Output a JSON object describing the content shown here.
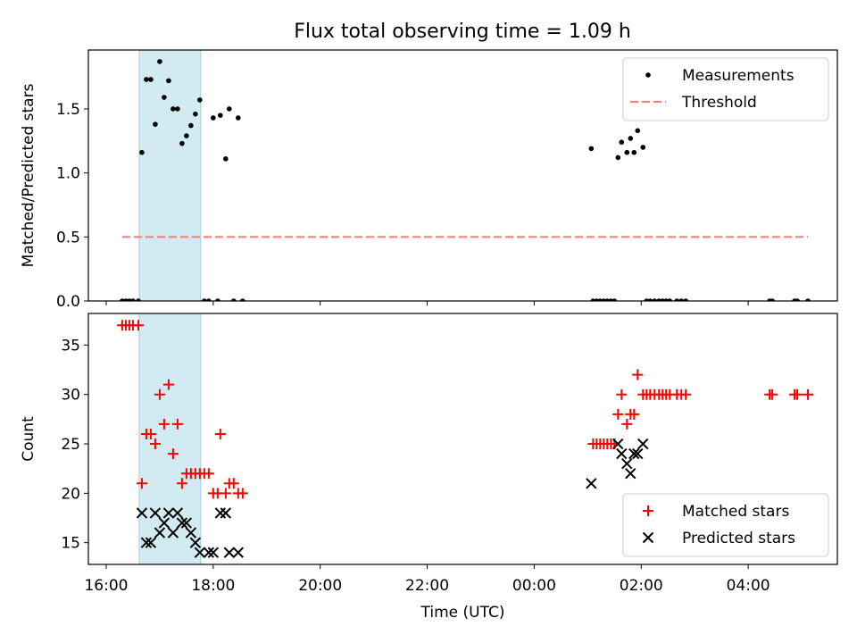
{
  "figure": {
    "title": "Flux total observing time = 1.09 h"
  },
  "chart_data": [
    {
      "type": "scatter",
      "panel": "top",
      "title": "Flux total observing time = 1.09 h",
      "xlabel": "",
      "ylabel": "Matched/Predicted stars",
      "x_tick_labels": [],
      "xlim": [
        "15:40",
        "05:40"
      ],
      "ylim": [
        0,
        1.96
      ],
      "y_ticks": [
        0.0,
        0.5,
        1.0,
        1.5
      ],
      "y_tick_labels": [
        "0.0",
        "0.5",
        "1.0",
        "1.5"
      ],
      "shaded_span": {
        "start": "16:37",
        "end": "17:46",
        "color": "#add8e6"
      },
      "legend": {
        "placement": "top-right",
        "entries": [
          "Measurements",
          "Threshold"
        ]
      },
      "series": [
        {
          "name": "Measurements",
          "marker": "dot",
          "color": "#000000",
          "points": [
            {
              "x": "16:18",
              "y": 0
            },
            {
              "x": "16:22",
              "y": 0
            },
            {
              "x": "16:26",
              "y": 0
            },
            {
              "x": "16:30",
              "y": 0
            },
            {
              "x": "16:36",
              "y": 0
            },
            {
              "x": "16:40",
              "y": 1.16
            },
            {
              "x": "16:45",
              "y": 1.73
            },
            {
              "x": "16:50",
              "y": 1.73
            },
            {
              "x": "16:55",
              "y": 1.38
            },
            {
              "x": "17:00",
              "y": 1.87
            },
            {
              "x": "17:05",
              "y": 1.59
            },
            {
              "x": "17:10",
              "y": 1.72
            },
            {
              "x": "17:15",
              "y": 1.5
            },
            {
              "x": "17:20",
              "y": 1.5
            },
            {
              "x": "17:25",
              "y": 1.23
            },
            {
              "x": "17:30",
              "y": 1.29
            },
            {
              "x": "17:35",
              "y": 1.37
            },
            {
              "x": "17:40",
              "y": 1.46
            },
            {
              "x": "17:45",
              "y": 1.57
            },
            {
              "x": "17:50",
              "y": 0
            },
            {
              "x": "17:55",
              "y": 0
            },
            {
              "x": "18:00",
              "y": 1.43
            },
            {
              "x": "18:05",
              "y": 0
            },
            {
              "x": "18:08",
              "y": 1.45
            },
            {
              "x": "18:14",
              "y": 1.11
            },
            {
              "x": "18:18",
              "y": 1.5
            },
            {
              "x": "18:23",
              "y": 0
            },
            {
              "x": "18:28",
              "y": 1.43
            },
            {
              "x": "18:33",
              "y": 0
            },
            {
              "x": "01:04",
              "y": 1.19
            },
            {
              "x": "01:06",
              "y": 0
            },
            {
              "x": "01:10",
              "y": 0
            },
            {
              "x": "01:14",
              "y": 0
            },
            {
              "x": "01:18",
              "y": 0
            },
            {
              "x": "01:22",
              "y": 0
            },
            {
              "x": "01:26",
              "y": 0
            },
            {
              "x": "01:30",
              "y": 0
            },
            {
              "x": "01:34",
              "y": 1.12
            },
            {
              "x": "01:38",
              "y": 1.24
            },
            {
              "x": "01:44",
              "y": 1.16
            },
            {
              "x": "01:48",
              "y": 1.27
            },
            {
              "x": "01:52",
              "y": 1.16
            },
            {
              "x": "01:56",
              "y": 1.33
            },
            {
              "x": "02:02",
              "y": 1.2
            },
            {
              "x": "02:06",
              "y": 0
            },
            {
              "x": "02:10",
              "y": 0
            },
            {
              "x": "02:15",
              "y": 0
            },
            {
              "x": "02:20",
              "y": 0
            },
            {
              "x": "02:24",
              "y": 0
            },
            {
              "x": "02:28",
              "y": 0
            },
            {
              "x": "02:32",
              "y": 0
            },
            {
              "x": "02:40",
              "y": 0
            },
            {
              "x": "02:45",
              "y": 0
            },
            {
              "x": "02:50",
              "y": 0
            },
            {
              "x": "04:24",
              "y": 0
            },
            {
              "x": "04:27",
              "y": 0
            },
            {
              "x": "04:52",
              "y": 0
            },
            {
              "x": "04:55",
              "y": 0
            },
            {
              "x": "05:07",
              "y": 0
            }
          ]
        },
        {
          "name": "Threshold",
          "marker": "dashed-line",
          "color": "#ff7f7f",
          "points": [
            {
              "x": "16:18",
              "y": 0.5
            },
            {
              "x": "05:07",
              "y": 0.5
            }
          ]
        }
      ]
    },
    {
      "type": "scatter",
      "panel": "bottom",
      "xlabel": "Time (UTC)",
      "ylabel": "Count",
      "xlim": [
        "15:40",
        "05:40"
      ],
      "x_ticks": [
        "16:00",
        "18:00",
        "20:00",
        "22:00",
        "00:00",
        "02:00",
        "04:00"
      ],
      "x_tick_labels": [
        "16:00",
        "18:00",
        "20:00",
        "22:00",
        "00:00",
        "02:00",
        "04:00"
      ],
      "ylim": [
        12.8,
        38.2
      ],
      "y_ticks": [
        15,
        20,
        25,
        30,
        35
      ],
      "y_tick_labels": [
        "15",
        "20",
        "25",
        "30",
        "35"
      ],
      "shaded_span": {
        "start": "16:37",
        "end": "17:46",
        "color": "#add8e6"
      },
      "legend": {
        "placement": "bottom-right",
        "entries": [
          "Matched stars",
          "Predicted stars"
        ]
      },
      "series": [
        {
          "name": "Matched stars",
          "marker": "plus",
          "color": "#ff0000",
          "points": [
            {
              "x": "16:18",
              "y": 37
            },
            {
              "x": "16:22",
              "y": 37
            },
            {
              "x": "16:26",
              "y": 37
            },
            {
              "x": "16:30",
              "y": 37
            },
            {
              "x": "16:36",
              "y": 37
            },
            {
              "x": "16:40",
              "y": 21
            },
            {
              "x": "16:45",
              "y": 26
            },
            {
              "x": "16:50",
              "y": 26
            },
            {
              "x": "16:55",
              "y": 25
            },
            {
              "x": "17:00",
              "y": 30
            },
            {
              "x": "17:05",
              "y": 27
            },
            {
              "x": "17:10",
              "y": 31
            },
            {
              "x": "17:15",
              "y": 24
            },
            {
              "x": "17:20",
              "y": 27
            },
            {
              "x": "17:25",
              "y": 21
            },
            {
              "x": "17:30",
              "y": 22
            },
            {
              "x": "17:35",
              "y": 22
            },
            {
              "x": "17:40",
              "y": 22
            },
            {
              "x": "17:45",
              "y": 22
            },
            {
              "x": "17:50",
              "y": 22
            },
            {
              "x": "17:55",
              "y": 22
            },
            {
              "x": "18:00",
              "y": 20
            },
            {
              "x": "18:05",
              "y": 20
            },
            {
              "x": "18:08",
              "y": 26
            },
            {
              "x": "18:14",
              "y": 20
            },
            {
              "x": "18:18",
              "y": 21
            },
            {
              "x": "18:23",
              "y": 21
            },
            {
              "x": "18:28",
              "y": 20
            },
            {
              "x": "18:33",
              "y": 20
            },
            {
              "x": "01:06",
              "y": 25
            },
            {
              "x": "01:10",
              "y": 25
            },
            {
              "x": "01:14",
              "y": 25
            },
            {
              "x": "01:18",
              "y": 25
            },
            {
              "x": "01:22",
              "y": 25
            },
            {
              "x": "01:26",
              "y": 25
            },
            {
              "x": "01:30",
              "y": 25
            },
            {
              "x": "01:34",
              "y": 28
            },
            {
              "x": "01:38",
              "y": 30
            },
            {
              "x": "01:44",
              "y": 27
            },
            {
              "x": "01:48",
              "y": 28
            },
            {
              "x": "01:52",
              "y": 28
            },
            {
              "x": "01:56",
              "y": 32
            },
            {
              "x": "02:02",
              "y": 30
            },
            {
              "x": "02:06",
              "y": 30
            },
            {
              "x": "02:10",
              "y": 30
            },
            {
              "x": "02:15",
              "y": 30
            },
            {
              "x": "02:20",
              "y": 30
            },
            {
              "x": "02:24",
              "y": 30
            },
            {
              "x": "02:28",
              "y": 30
            },
            {
              "x": "02:32",
              "y": 30
            },
            {
              "x": "02:40",
              "y": 30
            },
            {
              "x": "02:45",
              "y": 30
            },
            {
              "x": "02:50",
              "y": 30
            },
            {
              "x": "04:24",
              "y": 30
            },
            {
              "x": "04:27",
              "y": 30
            },
            {
              "x": "04:52",
              "y": 30
            },
            {
              "x": "04:55",
              "y": 30
            },
            {
              "x": "05:07",
              "y": 30
            }
          ]
        },
        {
          "name": "Predicted stars",
          "marker": "x",
          "color": "#000000",
          "points": [
            {
              "x": "16:40",
              "y": 18
            },
            {
              "x": "16:45",
              "y": 15
            },
            {
              "x": "16:50",
              "y": 15
            },
            {
              "x": "16:55",
              "y": 18
            },
            {
              "x": "17:00",
              "y": 16
            },
            {
              "x": "17:05",
              "y": 17
            },
            {
              "x": "17:10",
              "y": 18
            },
            {
              "x": "17:15",
              "y": 16
            },
            {
              "x": "17:20",
              "y": 18
            },
            {
              "x": "17:25",
              "y": 17
            },
            {
              "x": "17:30",
              "y": 17
            },
            {
              "x": "17:35",
              "y": 16
            },
            {
              "x": "17:40",
              "y": 15
            },
            {
              "x": "17:45",
              "y": 14
            },
            {
              "x": "17:55",
              "y": 14
            },
            {
              "x": "18:00",
              "y": 14
            },
            {
              "x": "18:08",
              "y": 18
            },
            {
              "x": "18:14",
              "y": 18
            },
            {
              "x": "18:18",
              "y": 14
            },
            {
              "x": "18:28",
              "y": 14
            },
            {
              "x": "01:04",
              "y": 21
            },
            {
              "x": "01:34",
              "y": 25
            },
            {
              "x": "01:38",
              "y": 24
            },
            {
              "x": "01:44",
              "y": 23
            },
            {
              "x": "01:48",
              "y": 22
            },
            {
              "x": "01:52",
              "y": 24
            },
            {
              "x": "01:56",
              "y": 24
            },
            {
              "x": "02:02",
              "y": 25
            }
          ]
        }
      ]
    }
  ]
}
